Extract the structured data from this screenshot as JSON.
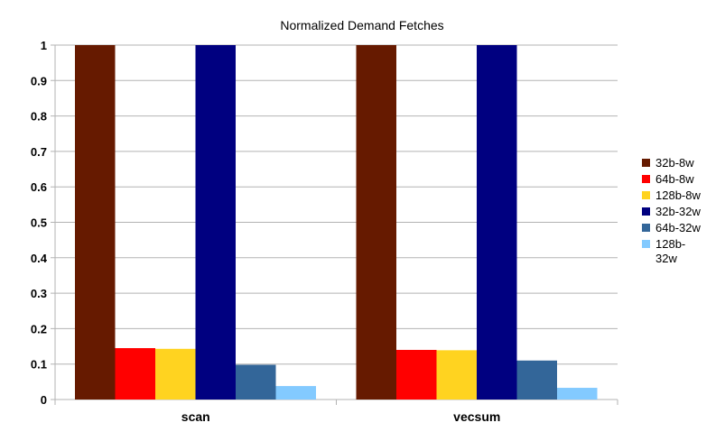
{
  "chart_data": {
    "type": "bar",
    "title": "Normalized Demand Fetches",
    "xlabel": "",
    "ylabel": "",
    "ylim": [
      0,
      1
    ],
    "yticks": [
      "0",
      "0.1",
      "0.2",
      "0.3",
      "0.4",
      "0.5",
      "0.6",
      "0.7",
      "0.8",
      "0.9",
      "1"
    ],
    "grid": true,
    "legend_position": "right",
    "categories": [
      "scan",
      "vecsum"
    ],
    "series": [
      {
        "name": "32b-8w",
        "legend_lines": [
          "32b-8w"
        ],
        "color": "#661a00",
        "values": [
          1.0,
          1.0
        ]
      },
      {
        "name": "64b-8w",
        "legend_lines": [
          "64b-8w"
        ],
        "color": "#ff0000",
        "values": [
          0.145,
          0.14
        ]
      },
      {
        "name": "128b-8w",
        "legend_lines": [
          "128b-8w"
        ],
        "color": "#ffd320",
        "values": [
          0.143,
          0.139
        ]
      },
      {
        "name": "32b-32w",
        "legend_lines": [
          "32b-32w"
        ],
        "color": "#000080",
        "values": [
          1.0,
          1.0
        ]
      },
      {
        "name": "64b-32w",
        "legend_lines": [
          "64b-32w"
        ],
        "color": "#336699",
        "values": [
          0.098,
          0.11
        ]
      },
      {
        "name": "128b-32w",
        "legend_lines": [
          "128b-",
          "32w"
        ],
        "color": "#83caff",
        "values": [
          0.038,
          0.033
        ]
      }
    ]
  }
}
